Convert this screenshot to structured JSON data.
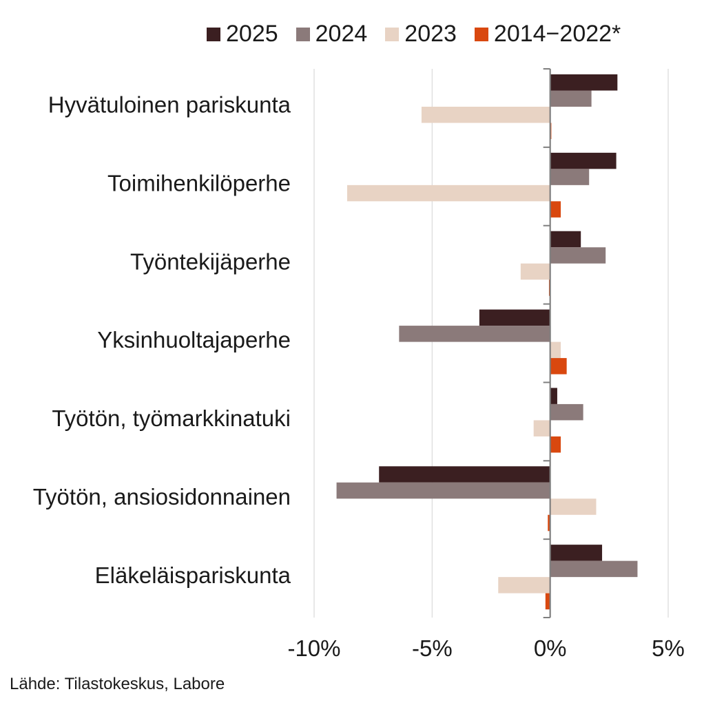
{
  "chart_data": {
    "type": "bar",
    "orientation": "horizontal",
    "categories": [
      "Hyvätuloinen pariskunta",
      "Toimihenkilöperhe",
      "Työntekijäperhe",
      "Yksinhuoltajaperhe",
      "Työtön, työmarkkinatuki",
      "Työtön, ansiosidonnainen",
      "Eläkeläispariskunta"
    ],
    "series": [
      {
        "name": "2025",
        "color": "#3b1f21",
        "values": [
          2.85,
          2.8,
          1.3,
          -3.0,
          0.3,
          -7.25,
          2.2
        ]
      },
      {
        "name": "2024",
        "color": "#8b7a7a",
        "values": [
          1.75,
          1.65,
          2.35,
          -6.4,
          1.4,
          -9.05,
          3.7
        ]
      },
      {
        "name": "2023",
        "color": "#e8d3c4",
        "values": [
          -5.45,
          -8.6,
          -1.25,
          0.45,
          -0.7,
          1.95,
          -2.2
        ]
      },
      {
        "name": "2014−2022*",
        "color": "#d9480f",
        "values": [
          0.05,
          0.45,
          -0.05,
          0.7,
          0.45,
          -0.1,
          -0.2
        ]
      }
    ],
    "xlim": [
      -10,
      5
    ],
    "xticks": [
      -10,
      -5,
      0,
      5
    ],
    "tick_labels": [
      "-10%",
      "-5%",
      "0%",
      "5%"
    ],
    "grid": true,
    "legend_position": "top"
  },
  "source": "Lähde: Tilastokeskus, Labore"
}
